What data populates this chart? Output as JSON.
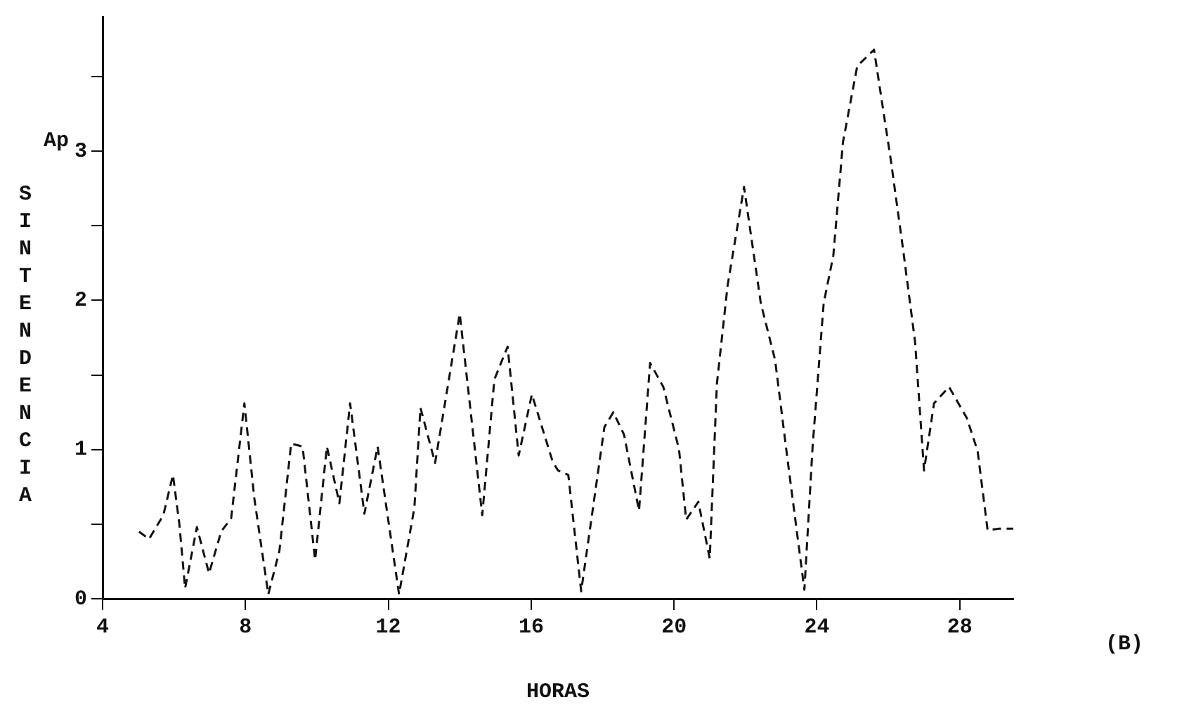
{
  "chart_data": {
    "type": "line",
    "xlabel": "HORAS",
    "ylabel": "Ap SINTENDENCIA",
    "annotations": [
      "(B)"
    ],
    "line_style": "dashed",
    "xlim": [
      4,
      29.5
    ],
    "xticks": [
      4,
      8,
      12,
      16,
      20,
      24,
      28
    ],
    "ylim": [
      0,
      3.9
    ],
    "yticks": [
      0,
      {
        "value": 0.5,
        "label": null
      },
      1,
      {
        "value": 1.5,
        "label": null
      },
      2,
      {
        "value": 2.5,
        "label": null
      },
      3,
      {
        "value": 3.5,
        "label": null
      }
    ],
    "series": [
      {
        "color": "#111111",
        "x": [
          5.02,
          5.3,
          5.7,
          5.97,
          6.15,
          6.31,
          6.64,
          6.98,
          7.32,
          7.6,
          7.97,
          8.25,
          8.64,
          8.95,
          9.28,
          9.6,
          9.95,
          10.28,
          10.63,
          10.93,
          11.33,
          11.7,
          12.3,
          12.73,
          12.9,
          13.31,
          14.0,
          14.63,
          14.97,
          15.34,
          15.65,
          16.02,
          16.6,
          16.75,
          17.04,
          17.4,
          18.05,
          18.3,
          18.6,
          19.02,
          19.33,
          19.7,
          20.14,
          20.34,
          20.68,
          21.0,
          21.2,
          21.5,
          21.96,
          22.43,
          22.83,
          23.18,
          23.65,
          23.88,
          24.19,
          24.46,
          24.73,
          25.13,
          25.6,
          26.07,
          26.42,
          26.75,
          27.0,
          27.28,
          27.7,
          28.2,
          28.5,
          28.78,
          29.1,
          29.5
        ],
        "values": [
          0.45,
          0.4,
          0.56,
          0.83,
          0.5,
          0.07,
          0.48,
          0.17,
          0.45,
          0.54,
          1.31,
          0.67,
          0.03,
          0.32,
          1.04,
          1.02,
          0.26,
          1.02,
          0.64,
          1.31,
          0.57,
          1.02,
          0.03,
          0.61,
          1.28,
          0.91,
          1.91,
          0.56,
          1.47,
          1.69,
          0.96,
          1.37,
          0.92,
          0.86,
          0.83,
          0.05,
          1.15,
          1.25,
          1.1,
          0.59,
          1.58,
          1.42,
          1.0,
          0.53,
          0.65,
          0.27,
          1.44,
          2.1,
          2.76,
          1.98,
          1.6,
          0.93,
          0.06,
          1.02,
          1.98,
          2.3,
          3.06,
          3.57,
          3.68,
          2.94,
          2.33,
          1.72,
          0.86,
          1.31,
          1.42,
          1.21,
          0.99,
          0.46,
          0.47,
          0.47
        ]
      }
    ]
  }
}
